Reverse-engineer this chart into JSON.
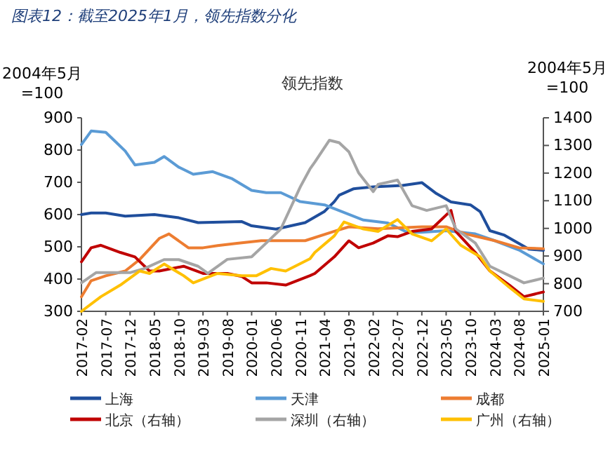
{
  "chart_data": {
    "type": "line",
    "title": "图表12：截至2025年1月，领先指数分化",
    "subtitle": "领先指数",
    "ylabel": "2004年5月\n=100",
    "y2label": "2004年5月\n=100",
    "xlim": [
      "2017-02",
      "2025-01"
    ],
    "xticks": [
      "2017-02",
      "2017-07",
      "2017-12",
      "2018-05",
      "2018-10",
      "2019-03",
      "2019-08",
      "2020-01",
      "2020-06",
      "2020-11",
      "2021-04",
      "2021-09",
      "2022-02",
      "2022-07",
      "2022-12",
      "2023-05",
      "2023-10",
      "2024-03",
      "2024-08",
      "2025-01"
    ],
    "ylim": [
      300,
      900
    ],
    "yticks": [
      300,
      400,
      500,
      600,
      700,
      800,
      900
    ],
    "y2lim": [
      700,
      1400
    ],
    "y2ticks": [
      700,
      800,
      900,
      1000,
      1100,
      1200,
      1300,
      1400
    ],
    "legend": "bottom",
    "series": [
      {
        "name": "上海",
        "color": "#1f4e9c",
        "x": [
          "2017-02",
          "2017-04",
          "2017-07",
          "2017-11",
          "2018-05",
          "2018-10",
          "2019-02",
          "2019-11",
          "2020-01",
          "2020-06",
          "2020-12",
          "2021-04",
          "2021-06",
          "2021-07",
          "2021-10",
          "2022-02",
          "2022-08",
          "2022-12",
          "2023-03",
          "2023-06",
          "2023-10",
          "2023-12",
          "2024-02",
          "2024-05",
          "2024-10",
          "2025-01"
        ],
        "values": [
          600,
          605,
          605,
          595,
          600,
          590,
          575,
          578,
          565,
          555,
          575,
          610,
          640,
          660,
          680,
          686,
          690,
          699,
          665,
          639,
          630,
          609,
          550,
          536,
          493,
          489
        ]
      },
      {
        "name": "天津",
        "color": "#5b9bd5",
        "x": [
          "2017-02",
          "2017-04",
          "2017-07",
          "2017-09",
          "2017-11",
          "2018-01",
          "2018-05",
          "2018-07",
          "2018-10",
          "2019-01",
          "2019-05",
          "2019-09",
          "2020-01",
          "2020-04",
          "2020-07",
          "2020-11",
          "2021-04",
          "2021-12",
          "2022-05",
          "2022-09",
          "2022-12",
          "2023-05",
          "2023-11",
          "2024-03",
          "2024-08",
          "2025-01"
        ],
        "values": [
          817,
          859,
          855,
          826,
          797,
          754,
          762,
          780,
          747,
          725,
          733,
          711,
          675,
          668,
          668,
          640,
          630,
          583,
          574,
          545,
          545,
          550,
          540,
          519,
          490,
          447
        ]
      },
      {
        "name": "成都",
        "color": "#ed7d31",
        "x": [
          "2017-02",
          "2017-04",
          "2017-07",
          "2017-11",
          "2018-02",
          "2018-06",
          "2018-08",
          "2018-12",
          "2019-03",
          "2019-06",
          "2019-10",
          "2020-03",
          "2020-12",
          "2021-06",
          "2021-09",
          "2022-03",
          "2022-12",
          "2023-05",
          "2023-09",
          "2024-03",
          "2024-08",
          "2025-01"
        ],
        "values": [
          345,
          395,
          410,
          425,
          461,
          526,
          540,
          497,
          497,
          504,
          511,
          519,
          519,
          548,
          562,
          556,
          562,
          562,
          540,
          519,
          497,
          494
        ]
      },
      {
        "name": "北京（右轴）",
        "color": "#c00000",
        "axis": "y2",
        "x": [
          "2017-02",
          "2017-04",
          "2017-06",
          "2017-10",
          "2018-01",
          "2018-04",
          "2018-06",
          "2018-11",
          "2019-03",
          "2019-08",
          "2019-11",
          "2020-01",
          "2020-04",
          "2020-08",
          "2021-01",
          "2021-02",
          "2021-06",
          "2021-09",
          "2021-11",
          "2022-02",
          "2022-05",
          "2022-07",
          "2022-10",
          "2023-02",
          "2023-06",
          "2023-07",
          "2023-11",
          "2024-02",
          "2024-06",
          "2024-09",
          "2025-01"
        ],
        "values": [
          879,
          930,
          939,
          913,
          897,
          846,
          846,
          863,
          837,
          837,
          826,
          803,
          803,
          795,
          829,
          837,
          897,
          955,
          930,
          947,
          973,
          970,
          989,
          998,
          1065,
          989,
          913,
          846,
          795,
          753,
          770
        ]
      },
      {
        "name": "深圳（右轴）",
        "color": "#a5a5a5",
        "axis": "y2",
        "x": [
          "2017-02",
          "2017-05",
          "2017-12",
          "2018-03",
          "2018-07",
          "2018-10",
          "2019-02",
          "2019-04",
          "2019-08",
          "2020-01",
          "2020-04",
          "2020-07",
          "2020-11",
          "2021-01",
          "2021-02",
          "2021-05",
          "2021-07",
          "2021-09",
          "2021-11",
          "2022-02",
          "2022-03",
          "2022-05",
          "2022-07",
          "2022-10",
          "2023-01",
          "2023-05",
          "2023-07",
          "2023-11",
          "2024-02",
          "2024-06",
          "2024-09",
          "2025-01"
        ],
        "values": [
          803,
          840,
          840,
          855,
          887,
          887,
          863,
          837,
          888,
          897,
          947,
          998,
          1150,
          1215,
          1240,
          1319,
          1310,
          1277,
          1201,
          1133,
          1159,
          1167,
          1175,
          1082,
          1065,
          1082,
          998,
          947,
          863,
          829,
          803,
          820
        ]
      },
      {
        "name": "广州（右轴）",
        "color": "#ffc000",
        "axis": "y2",
        "x": [
          "2017-02",
          "2017-06",
          "2017-10",
          "2018-02",
          "2018-04",
          "2018-07",
          "2018-11",
          "2019-01",
          "2019-06",
          "2019-11",
          "2020-02",
          "2020-05",
          "2020-08",
          "2021-01",
          "2021-02",
          "2021-06",
          "2021-08",
          "2021-12",
          "2022-03",
          "2022-07",
          "2022-10",
          "2023-02",
          "2023-05",
          "2023-08",
          "2023-12",
          "2024-02",
          "2024-06",
          "2024-09",
          "2025-01"
        ],
        "values": [
          700,
          753,
          795,
          846,
          837,
          871,
          829,
          803,
          837,
          829,
          829,
          855,
          846,
          890,
          913,
          973,
          1023,
          998,
          989,
          1032,
          980,
          955,
          998,
          939,
          897,
          846,
          787,
          745,
          736
        ]
      }
    ]
  }
}
